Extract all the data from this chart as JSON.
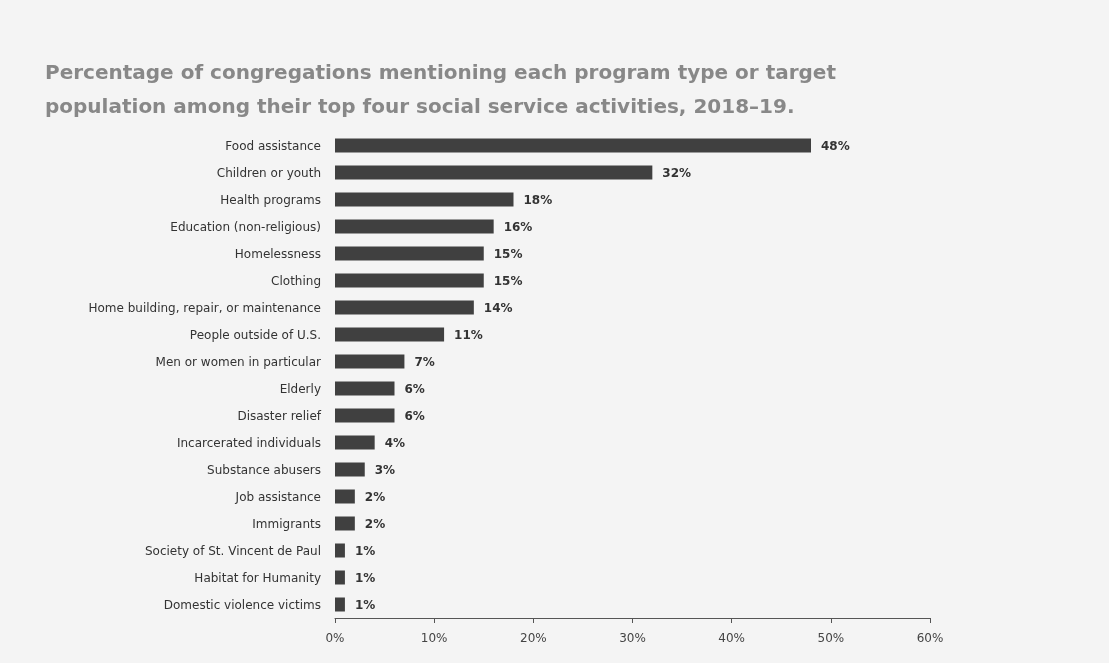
{
  "chart_data": {
    "type": "bar",
    "orientation": "horizontal",
    "title": "Percentage of congregations mentioning each program type or target population among their top four social service activities, 2018–19.",
    "categories": [
      "Food assistance",
      "Children or youth",
      "Health programs",
      "Education (non-religious)",
      "Homelessness",
      "Clothing",
      "Home building, repair, or maintenance",
      "People outside of U.S.",
      "Men or women in particular",
      "Elderly",
      "Disaster relief",
      "Incarcerated individuals",
      "Substance abusers",
      "Job assistance",
      "Immigrants",
      "Society of St. Vincent de Paul",
      "Habitat for Humanity",
      "Domestic violence victims"
    ],
    "values": [
      48,
      32,
      18,
      16,
      15,
      15,
      14,
      11,
      7,
      6,
      6,
      4,
      3,
      2,
      2,
      1,
      1,
      1
    ],
    "value_labels": [
      "48%",
      "32%",
      "18%",
      "16%",
      "15%",
      "15%",
      "14%",
      "11%",
      "7%",
      "6%",
      "6%",
      "4%",
      "3%",
      "2%",
      "2%",
      "1%",
      "1%",
      "1%"
    ],
    "color": "#404040",
    "xlim": [
      0,
      60
    ],
    "xticks": [
      {
        "value": 0,
        "label": "0%"
      },
      {
        "value": 10,
        "label": "10%"
      },
      {
        "value": 20,
        "label": "20%"
      },
      {
        "value": 30,
        "label": "30%"
      },
      {
        "value": 40,
        "label": "40%"
      },
      {
        "value": 50,
        "label": "50%"
      },
      {
        "value": 60,
        "label": "60%"
      }
    ],
    "grid": false
  }
}
